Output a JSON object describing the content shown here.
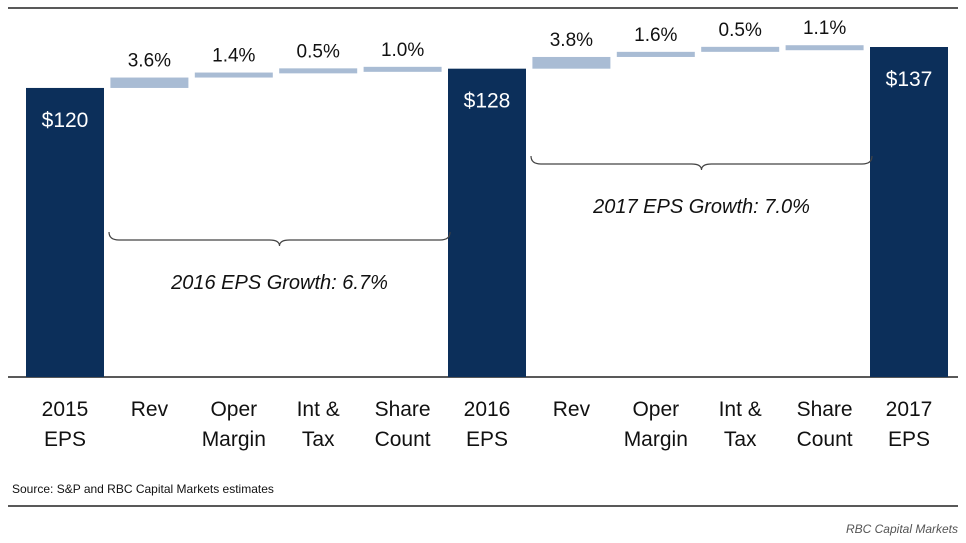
{
  "chart_data": {
    "type": "bar",
    "subtype": "waterfall",
    "categories": [
      [
        "2015",
        "EPS"
      ],
      [
        "Rev"
      ],
      [
        "Oper",
        "Margin"
      ],
      [
        "Int &",
        "Tax"
      ],
      [
        "Share",
        "Count"
      ],
      [
        "2016",
        "EPS"
      ],
      [
        "Rev"
      ],
      [
        "Oper",
        "Margin"
      ],
      [
        "Int &",
        "Tax"
      ],
      [
        "Share",
        "Count"
      ],
      [
        "2017",
        "EPS"
      ]
    ],
    "bars": [
      {
        "kind": "total",
        "value": 120,
        "label": "$120"
      },
      {
        "kind": "delta",
        "pct": 3.6,
        "label": "3.6%"
      },
      {
        "kind": "delta",
        "pct": 1.4,
        "label": "1.4%"
      },
      {
        "kind": "delta",
        "pct": 0.5,
        "label": "0.5%"
      },
      {
        "kind": "delta",
        "pct": 1.0,
        "label": "1.0%"
      },
      {
        "kind": "total",
        "value": 128,
        "label": "$128"
      },
      {
        "kind": "delta",
        "pct": 3.8,
        "label": "3.8%"
      },
      {
        "kind": "delta",
        "pct": 1.6,
        "label": "1.6%"
      },
      {
        "kind": "delta",
        "pct": 0.5,
        "label": "0.5%"
      },
      {
        "kind": "delta",
        "pct": 1.1,
        "label": "1.1%"
      },
      {
        "kind": "total",
        "value": 137,
        "label": "$137"
      }
    ],
    "annotations": [
      {
        "text": "2016 EPS Growth: 6.7%",
        "from": 0,
        "to": 5,
        "side": "below"
      },
      {
        "text": "2017 EPS Growth: 7.0%",
        "from": 5,
        "to": 10,
        "side": "below"
      }
    ],
    "title": "",
    "xlabel": "",
    "ylabel": "",
    "grid": false,
    "colors": {
      "total": "#0c2f5a",
      "delta": "#a9bcd4",
      "axis": "#222222"
    }
  },
  "footer": {
    "source": "Source: S&P and RBC Capital Markets estimates",
    "attribution": "RBC Capital Markets"
  }
}
